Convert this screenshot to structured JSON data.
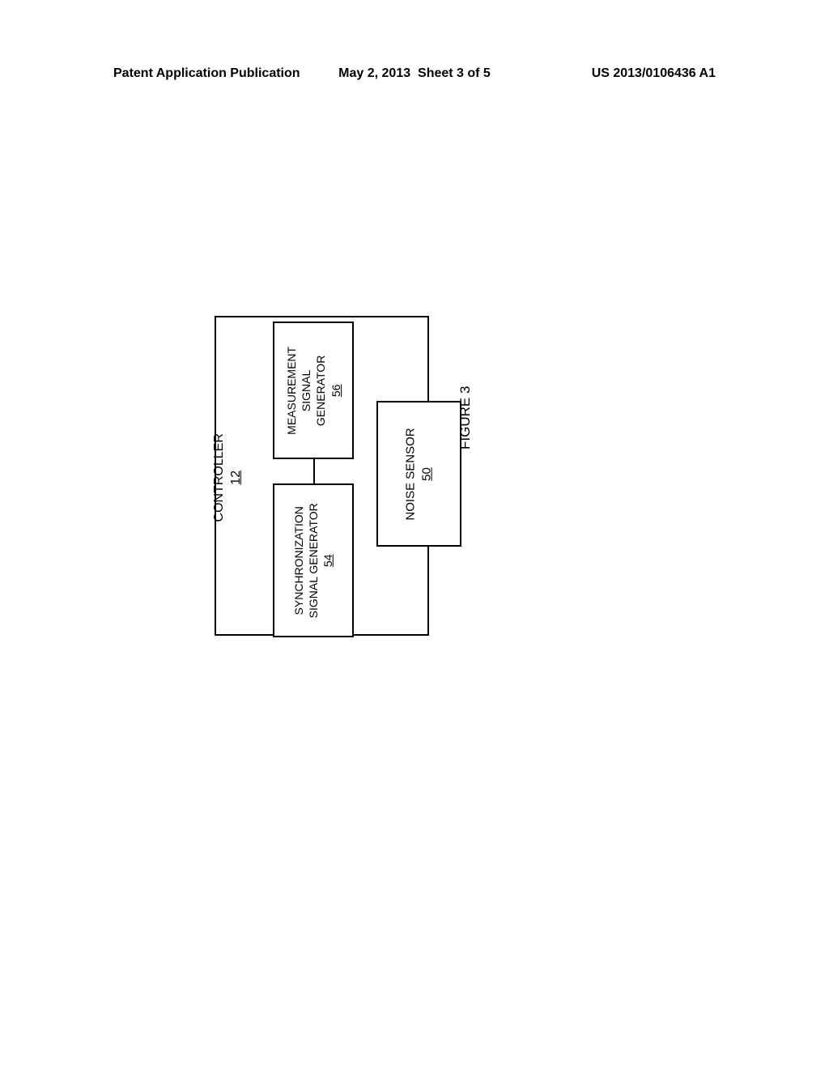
{
  "header": {
    "left": "Patent Application Publication",
    "date": "May 2, 2013",
    "sheet": "Sheet 3 of 5",
    "right": "US 2013/0106436 A1"
  },
  "diagram": {
    "type": "flowchart",
    "background_color": "#ffffff",
    "border_color": "#000000",
    "font_family": "Arial",
    "nodes": [
      {
        "id": "controller",
        "label": "CONTROLLER",
        "ref": "12",
        "fontsize": 16
      },
      {
        "id": "sync",
        "label_line1": "SYNCHRONIZATION",
        "label_line2": "SIGNAL GENERATOR",
        "ref": "54",
        "fontsize": 14
      },
      {
        "id": "meas",
        "label_line1": "MEASUREMENT",
        "label_line2": "SIGNAL",
        "label_line3": "GENERATOR",
        "ref": "56",
        "fontsize": 14
      },
      {
        "id": "noise",
        "label": "NOISE SENSOR",
        "ref": "50",
        "fontsize": 15
      }
    ],
    "figure_label": "FIGURE 3",
    "figure_fontsize": 17
  }
}
